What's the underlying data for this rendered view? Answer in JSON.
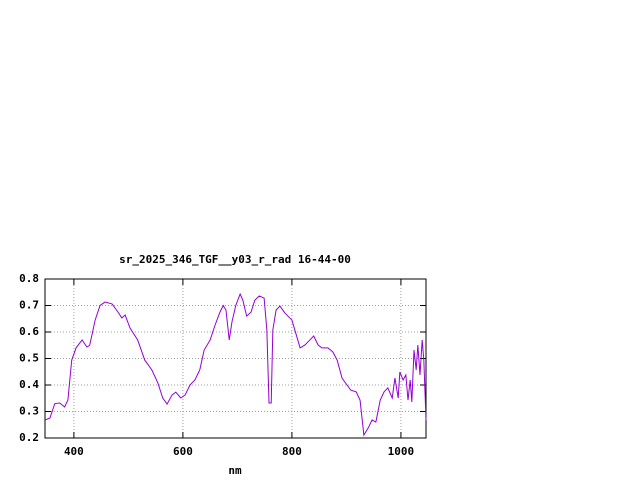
{
  "chart_data": {
    "type": "line",
    "title": "sr_2025_346_TGF__y03_r_rad 16-44-00",
    "x_label": "nm",
    "x": [
      347,
      356,
      365,
      374,
      383,
      389,
      396,
      404,
      415,
      424,
      429,
      439,
      448,
      457,
      470,
      481,
      488,
      494,
      503,
      517,
      530,
      543,
      554,
      563,
      571,
      580,
      587,
      596,
      604,
      613,
      622,
      631,
      639,
      650,
      659,
      668,
      674,
      679,
      685,
      690,
      697,
      705,
      710,
      717,
      725,
      732,
      740,
      749,
      754,
      758,
      762,
      765,
      771,
      778,
      787,
      800,
      807,
      815,
      824,
      833,
      840,
      848,
      855,
      866,
      875,
      883,
      892,
      901,
      908,
      918,
      925,
      932,
      940,
      947,
      954,
      962,
      969,
      976,
      984,
      989,
      995,
      998,
      1004,
      1009,
      1013,
      1017,
      1020,
      1024,
      1028,
      1031,
      1035,
      1039,
      1042,
      1046
    ],
    "series": [
      {
        "color": "#9400d3",
        "values": [
          0.268,
          0.275,
          0.33,
          0.332,
          0.317,
          0.343,
          0.494,
          0.54,
          0.57,
          0.543,
          0.55,
          0.645,
          0.7,
          0.713,
          0.706,
          0.675,
          0.653,
          0.664,
          0.615,
          0.57,
          0.494,
          0.457,
          0.408,
          0.351,
          0.328,
          0.362,
          0.373,
          0.351,
          0.362,
          0.4,
          0.419,
          0.457,
          0.532,
          0.57,
          0.626,
          0.675,
          0.7,
          0.683,
          0.57,
          0.638,
          0.7,
          0.743,
          0.72,
          0.66,
          0.675,
          0.72,
          0.736,
          0.728,
          0.608,
          0.332,
          0.332,
          0.608,
          0.683,
          0.698,
          0.672,
          0.645,
          0.596,
          0.54,
          0.551,
          0.57,
          0.585,
          0.551,
          0.54,
          0.54,
          0.525,
          0.494,
          0.426,
          0.4,
          0.381,
          0.374,
          0.343,
          0.211,
          0.238,
          0.268,
          0.26,
          0.343,
          0.374,
          0.389,
          0.351,
          0.426,
          0.351,
          0.449,
          0.419,
          0.438,
          0.343,
          0.419,
          0.336,
          0.532,
          0.457,
          0.551,
          0.438,
          0.57,
          0.494,
          0.268
        ]
      }
    ],
    "xlim": [
      347,
      1046
    ],
    "ylim": [
      0.2,
      0.8
    ],
    "xticks": [
      400,
      600,
      800,
      1000
    ],
    "yticks": [
      0.2,
      0.3,
      0.4,
      0.5,
      0.6,
      0.7,
      0.8
    ],
    "grid": true
  }
}
